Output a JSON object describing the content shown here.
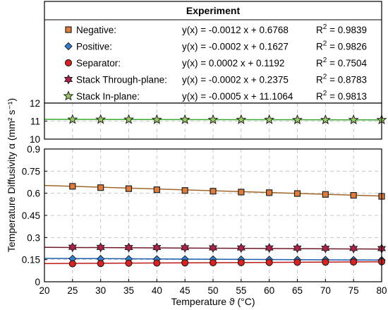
{
  "chart_data": {
    "type": "scatter",
    "legend": {
      "title": "Experiment",
      "entries": [
        {
          "label": "Negative:",
          "equation": "y(x) = -0.0012 x + 0.6768",
          "r2": "0.9839"
        },
        {
          "label": "Positive:",
          "equation": "y(x) = -0.0002 x + 0.1627",
          "r2": "0.9826"
        },
        {
          "label": "Separator:",
          "equation": "y(x) = 0.0002 x + 0.1192",
          "r2": "0.7504"
        },
        {
          "label": "Stack Through-plane:",
          "equation": "y(x) = -0.0002 x + 0.2375",
          "r2": "0.8783"
        },
        {
          "label": "Stack In-plane:",
          "equation": "y(x) = -0.0005 x + 11.1064",
          "r2": "0.9813"
        }
      ]
    },
    "x": [
      25,
      30,
      35,
      40,
      45,
      50,
      55,
      60,
      65,
      70,
      75,
      80
    ],
    "xlabel": "Temperature ϑ (°C)",
    "ylabel": "Temperature Diffusivity α (mm² s⁻¹)",
    "xlim": [
      20,
      80
    ],
    "x_ticks": [
      "20",
      "25",
      "30",
      "35",
      "40",
      "45",
      "50",
      "55",
      "60",
      "65",
      "70",
      "75",
      "80"
    ],
    "upper_panel": {
      "ylim": [
        10,
        12
      ],
      "y_ticks": [
        "10",
        "11",
        "12"
      ],
      "grid": true
    },
    "lower_panel": {
      "ylim": [
        0,
        0.9
      ],
      "y_ticks": [
        "0",
        "0.15",
        "0.3",
        "0.45",
        "0.6",
        "0.75",
        "0.9"
      ],
      "grid": true
    },
    "series": [
      {
        "name": "Negative",
        "panel": "lower",
        "marker": "square",
        "color": "#e07b39",
        "line_color": "#a0662a",
        "values": [
          0.647,
          0.638,
          0.631,
          0.624,
          0.619,
          0.614,
          0.608,
          0.604,
          0.598,
          0.592,
          0.586,
          0.579
        ],
        "fit": {
          "slope": -0.0012,
          "intercept": 0.6768
        }
      },
      {
        "name": "Positive",
        "panel": "lower",
        "marker": "diamond",
        "color": "#2f7fd4",
        "line_color": "#1f5fb0",
        "values": [
          0.156,
          0.155,
          0.154,
          0.153,
          0.153,
          0.152,
          0.151,
          0.15,
          0.149,
          0.149,
          0.148,
          0.147
        ],
        "fit": {
          "slope": -0.0002,
          "intercept": 0.1627
        }
      },
      {
        "name": "Separator",
        "panel": "lower",
        "marker": "circle",
        "color": "#e02020",
        "line_color": "#c01818",
        "values": [
          0.122,
          0.124,
          0.126,
          0.127,
          0.128,
          0.129,
          0.13,
          0.131,
          0.132,
          0.133,
          0.134,
          0.136
        ],
        "fit": {
          "slope": 0.0002,
          "intercept": 0.1192
        }
      },
      {
        "name": "Stack Through-plane",
        "panel": "lower",
        "marker": "hexagram",
        "color": "#b02048",
        "line_color": "#6e1a2a",
        "values": [
          0.234,
          0.233,
          0.232,
          0.232,
          0.231,
          0.23,
          0.229,
          0.229,
          0.228,
          0.227,
          0.226,
          0.225
        ],
        "fit": {
          "slope": -0.0002,
          "intercept": 0.2375
        }
      },
      {
        "name": "Stack In-plane",
        "panel": "upper",
        "marker": "star",
        "color": "#98c860",
        "line_color": "#3aa830",
        "values": [
          11.09,
          11.09,
          11.09,
          11.08,
          11.08,
          11.08,
          11.08,
          11.08,
          11.07,
          11.07,
          11.07,
          11.07
        ],
        "fit": {
          "slope": -0.0005,
          "intercept": 11.1064
        }
      }
    ]
  }
}
